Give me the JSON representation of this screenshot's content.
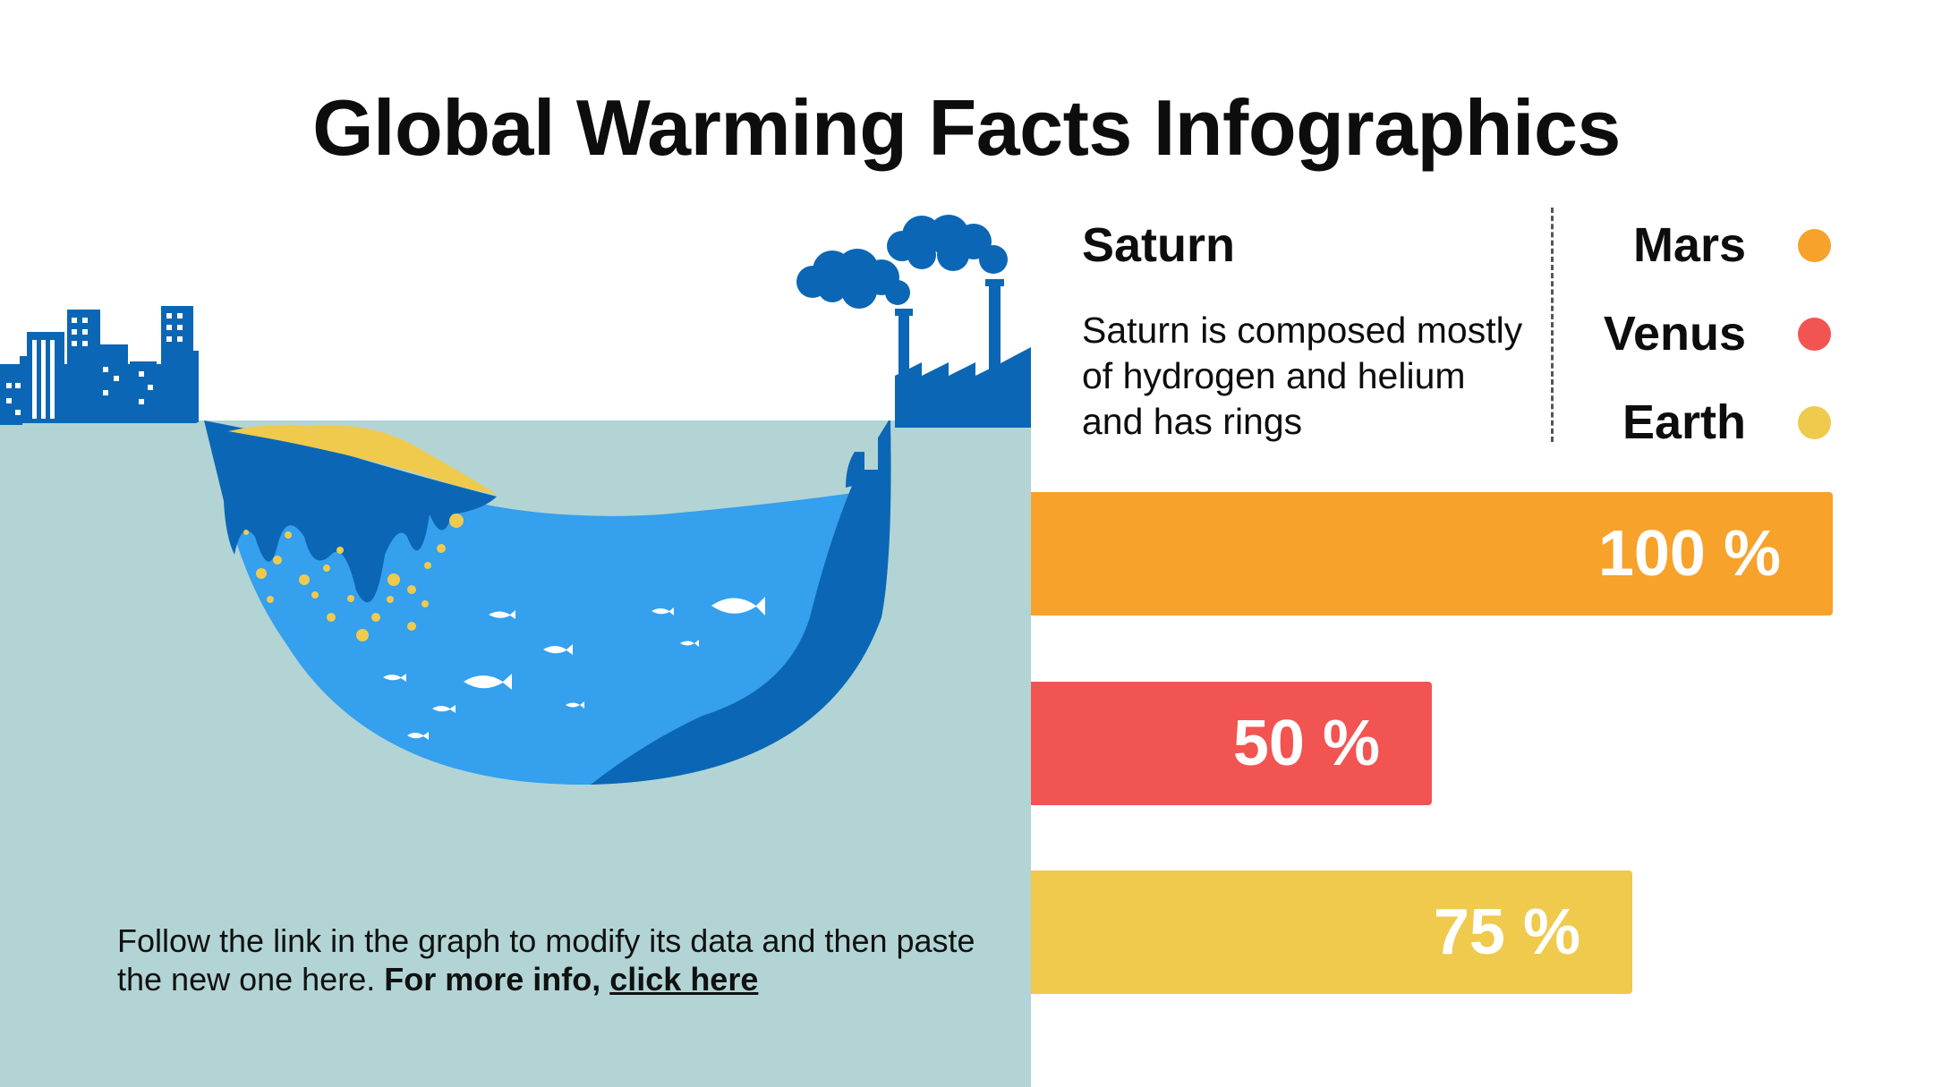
{
  "title": "Global Warming Facts Infographics",
  "info": {
    "heading": "Saturn",
    "description": "Saturn is composed mostly of hydrogen and helium and has rings"
  },
  "note": {
    "text": "Follow the link in the graph to modify its data and then paste the new one here.",
    "bold": "For more info,",
    "link": "click here"
  },
  "colors": {
    "mars": "#f7a22b",
    "venus": "#f25452",
    "earth": "#efca4d",
    "panel": "#b2d4d4",
    "water": "#34a0ee",
    "dark_blue": "#0b67b5"
  },
  "chart_data": {
    "type": "bar",
    "orientation": "horizontal",
    "categories": [
      "Mars",
      "Venus",
      "Earth"
    ],
    "values": [
      100,
      50,
      75
    ],
    "value_labels": [
      "100 %",
      "50 %",
      "75 %"
    ],
    "xlim": [
      0,
      100
    ],
    "legend": {
      "position": "top-right",
      "items": [
        {
          "label": "Mars",
          "color": "#f7a22b"
        },
        {
          "label": "Venus",
          "color": "#f25452"
        },
        {
          "label": "Earth",
          "color": "#efca4d"
        }
      ]
    }
  }
}
